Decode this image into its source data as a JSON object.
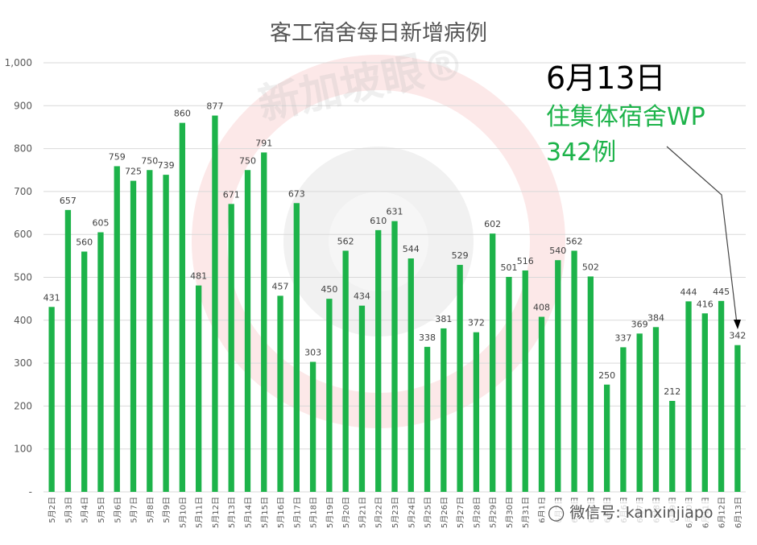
{
  "chart_data": {
    "type": "bar",
    "title": "客工宿舍每日新增病例",
    "xlabel": "",
    "ylabel": "",
    "ylim": [
      0,
      1000
    ],
    "yticks": [
      "-",
      "100",
      "200",
      "300",
      "400",
      "500",
      "600",
      "700",
      "800",
      "900",
      "1,000"
    ],
    "grid": true,
    "bar_color": "#1db34a",
    "categories": [
      "5月2日",
      "5月3日",
      "5月4日",
      "5月5日",
      "5月6日",
      "5月7日",
      "5月8日",
      "5月9日",
      "5月10日",
      "5月11日",
      "5月12日",
      "5月13日",
      "5月14日",
      "5月15日",
      "5月16日",
      "5月17日",
      "5月18日",
      "5月19日",
      "5月20日",
      "5月21日",
      "5月22日",
      "5月23日",
      "5月24日",
      "5月25日",
      "5月26日",
      "5月27日",
      "5月28日",
      "5月29日",
      "5月30日",
      "5月31日",
      "6月1日",
      "6月2日",
      "6月3日",
      "6月4日",
      "6月5日",
      "6月6日",
      "6月7日",
      "6月8日",
      "6月9日",
      "6月10日",
      "6月11日",
      "6月12日",
      "6月13日"
    ],
    "values": [
      431,
      657,
      560,
      605,
      759,
      725,
      750,
      739,
      860,
      481,
      877,
      671,
      750,
      791,
      457,
      673,
      303,
      450,
      562,
      434,
      610,
      631,
      544,
      338,
      381,
      529,
      372,
      602,
      501,
      516,
      408,
      540,
      562,
      502,
      250,
      337,
      369,
      384,
      212,
      444,
      416,
      445,
      342
    ]
  },
  "annotation": {
    "date": "6月13日",
    "line1": "住集体宿舍WP",
    "line2": "342例",
    "date_color": "#000000",
    "text_color": "#1db34a",
    "points_to": "6月13日"
  },
  "watermark": {
    "text": "新加坡眼®",
    "wechat": "微信号: kanxinjiapo",
    "icon": "wechat-icon"
  }
}
